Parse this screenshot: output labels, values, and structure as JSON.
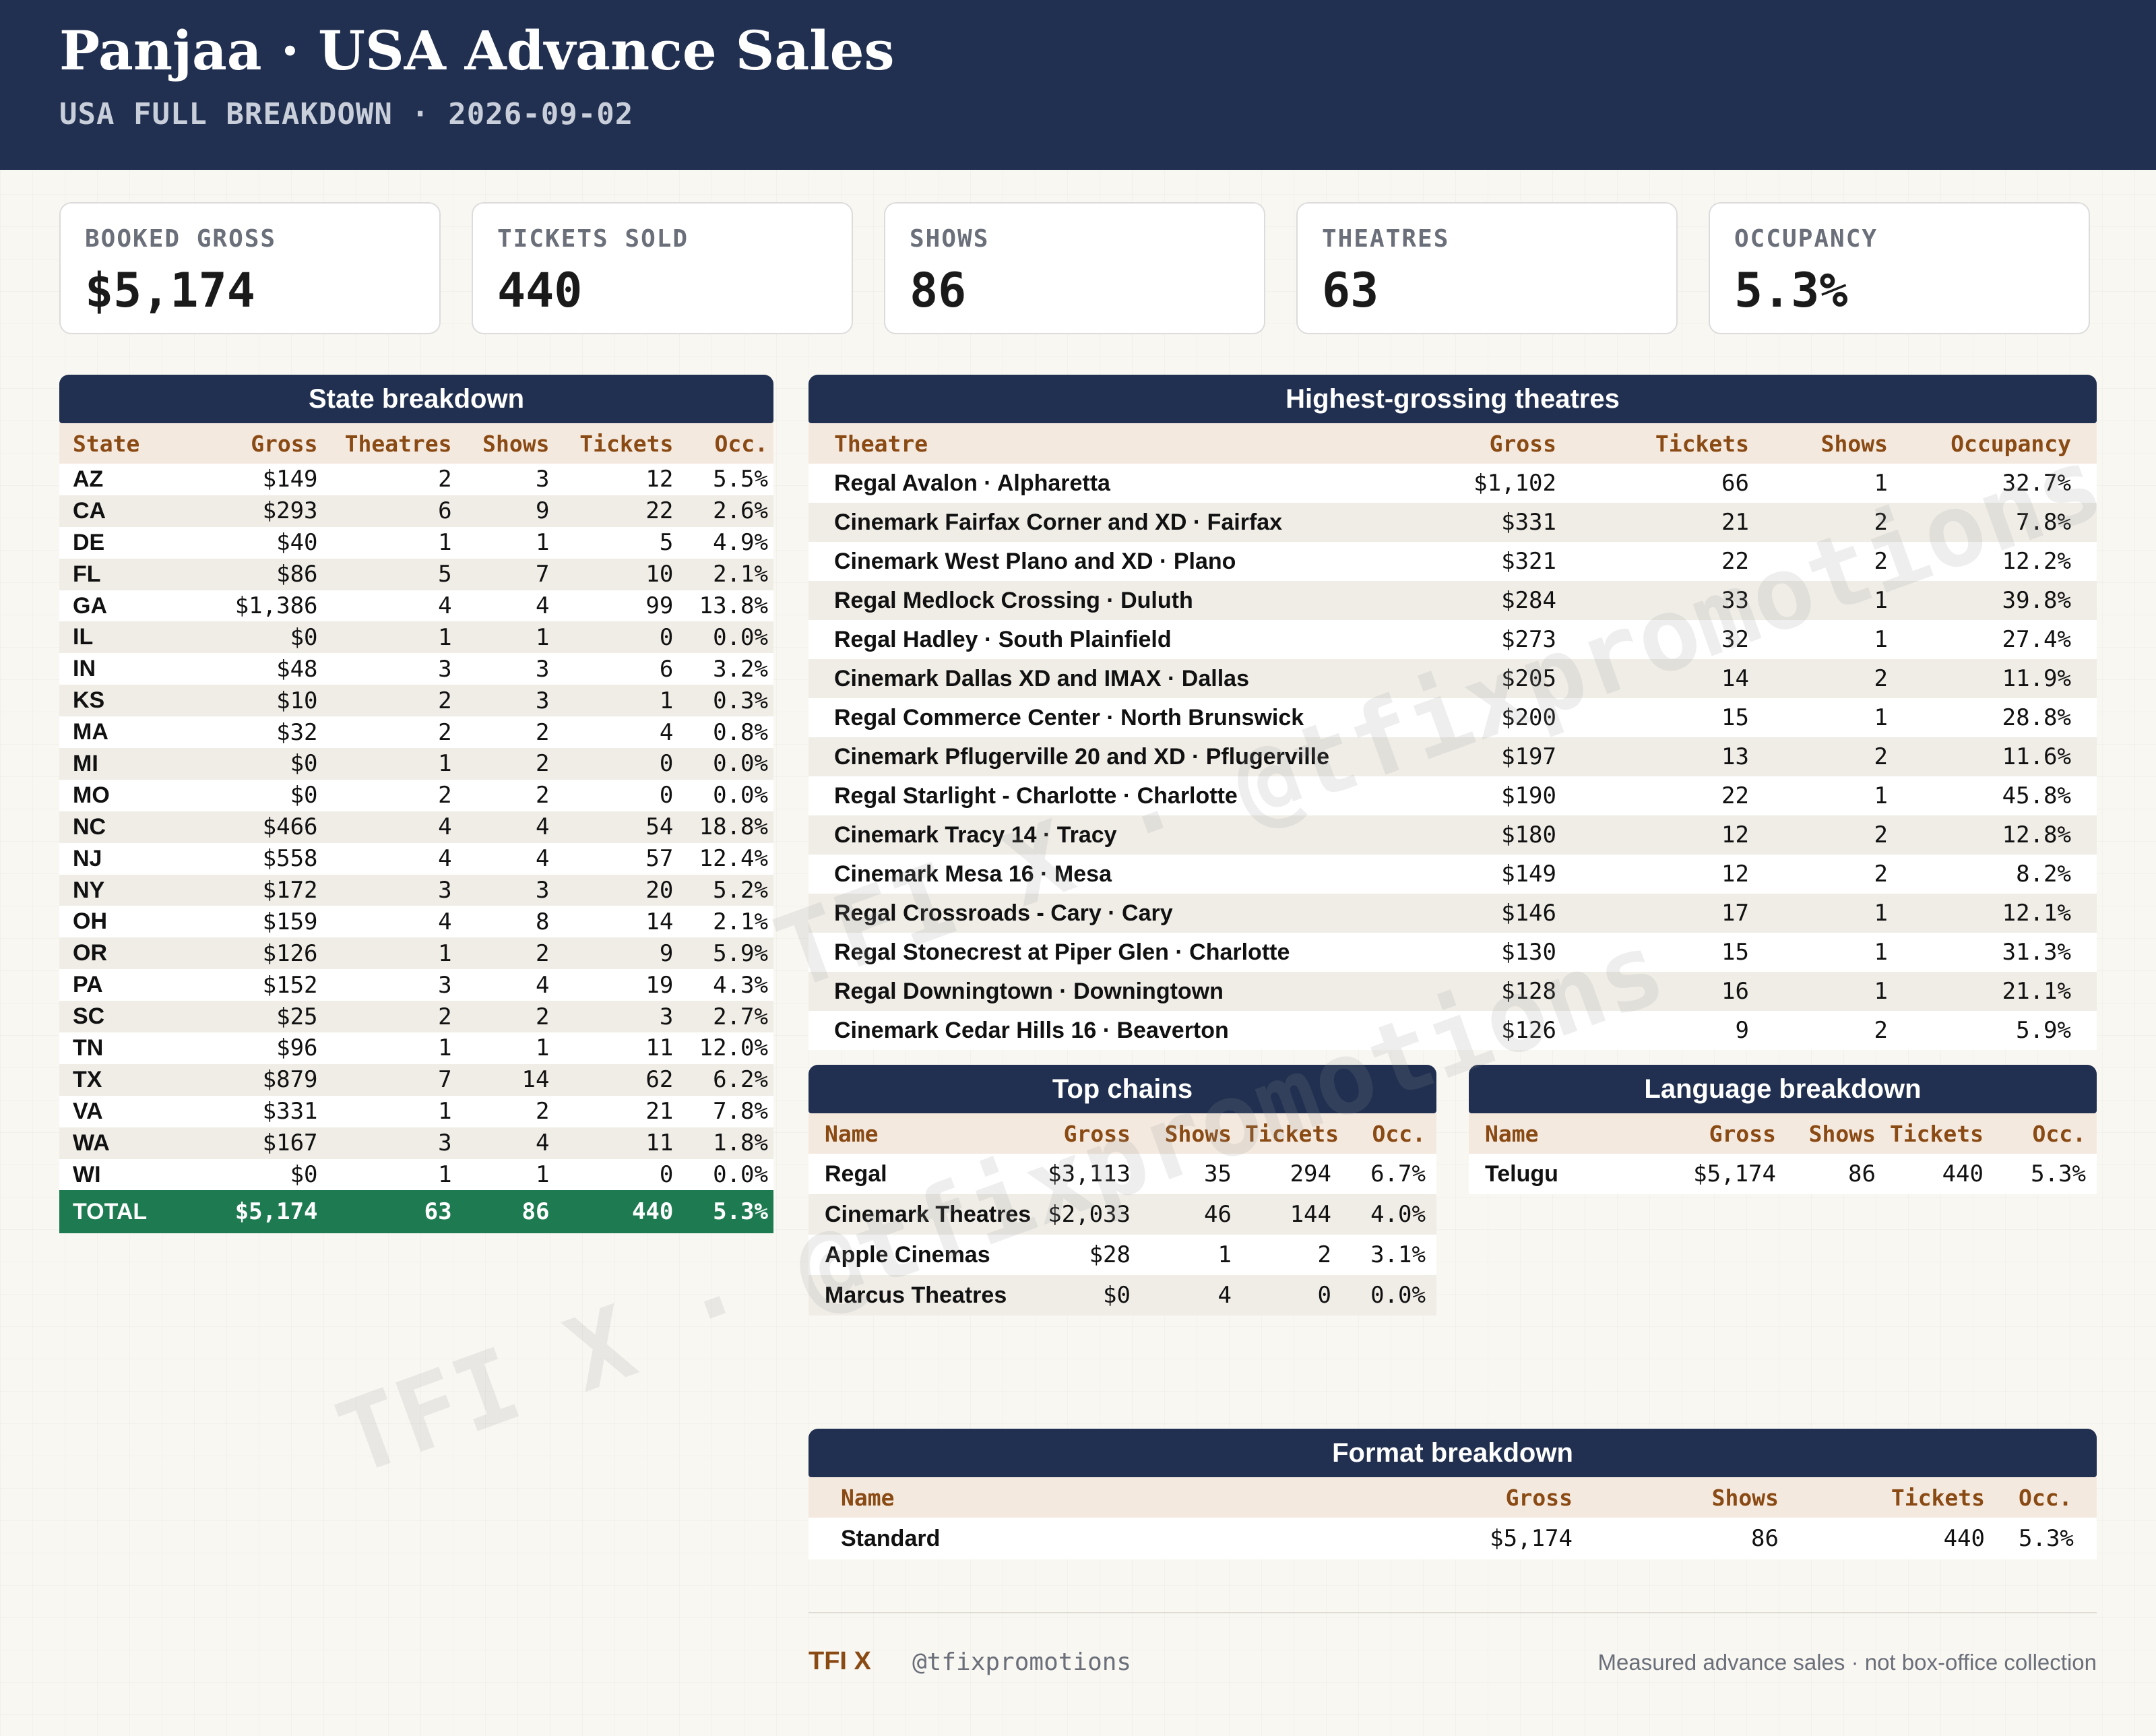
{
  "header": {
    "title": "Panjaa · USA Advance Sales",
    "subtitle": "USA FULL BREAKDOWN · 2026-09-02"
  },
  "kpis": [
    {
      "label": "BOOKED GROSS",
      "value": "$5,174"
    },
    {
      "label": "TICKETS SOLD",
      "value": "440"
    },
    {
      "label": "SHOWS",
      "value": "86"
    },
    {
      "label": "THEATRES",
      "value": "63"
    },
    {
      "label": "OCCUPANCY",
      "value": "5.3%"
    }
  ],
  "state_breakdown": {
    "title": "State breakdown",
    "columns": [
      "State",
      "Gross",
      "Theatres",
      "Shows",
      "Tickets",
      "Occ."
    ],
    "rows": [
      [
        "AZ",
        "$149",
        "2",
        "3",
        "12",
        "5.5%"
      ],
      [
        "CA",
        "$293",
        "6",
        "9",
        "22",
        "2.6%"
      ],
      [
        "DE",
        "$40",
        "1",
        "1",
        "5",
        "4.9%"
      ],
      [
        "FL",
        "$86",
        "5",
        "7",
        "10",
        "2.1%"
      ],
      [
        "GA",
        "$1,386",
        "4",
        "4",
        "99",
        "13.8%"
      ],
      [
        "IL",
        "$0",
        "1",
        "1",
        "0",
        "0.0%"
      ],
      [
        "IN",
        "$48",
        "3",
        "3",
        "6",
        "3.2%"
      ],
      [
        "KS",
        "$10",
        "2",
        "3",
        "1",
        "0.3%"
      ],
      [
        "MA",
        "$32",
        "2",
        "2",
        "4",
        "0.8%"
      ],
      [
        "MI",
        "$0",
        "1",
        "2",
        "0",
        "0.0%"
      ],
      [
        "MO",
        "$0",
        "2",
        "2",
        "0",
        "0.0%"
      ],
      [
        "NC",
        "$466",
        "4",
        "4",
        "54",
        "18.8%"
      ],
      [
        "NJ",
        "$558",
        "4",
        "4",
        "57",
        "12.4%"
      ],
      [
        "NY",
        "$172",
        "3",
        "3",
        "20",
        "5.2%"
      ],
      [
        "OH",
        "$159",
        "4",
        "8",
        "14",
        "2.1%"
      ],
      [
        "OR",
        "$126",
        "1",
        "2",
        "9",
        "5.9%"
      ],
      [
        "PA",
        "$152",
        "3",
        "4",
        "19",
        "4.3%"
      ],
      [
        "SC",
        "$25",
        "2",
        "2",
        "3",
        "2.7%"
      ],
      [
        "TN",
        "$96",
        "1",
        "1",
        "11",
        "12.0%"
      ],
      [
        "TX",
        "$879",
        "7",
        "14",
        "62",
        "6.2%"
      ],
      [
        "VA",
        "$331",
        "1",
        "2",
        "21",
        "7.8%"
      ],
      [
        "WA",
        "$167",
        "3",
        "4",
        "11",
        "1.8%"
      ],
      [
        "WI",
        "$0",
        "1",
        "1",
        "0",
        "0.0%"
      ]
    ],
    "total": [
      "TOTAL",
      "$5,174",
      "63",
      "86",
      "440",
      "5.3%"
    ]
  },
  "theatres": {
    "title": "Highest-grossing theatres",
    "columns": [
      "Theatre",
      "Gross",
      "Tickets",
      "Shows",
      "Occupancy"
    ],
    "rows": [
      [
        "Regal Avalon · Alpharetta",
        "$1,102",
        "66",
        "1",
        "32.7%"
      ],
      [
        "Cinemark Fairfax Corner and XD · Fairfax",
        "$331",
        "21",
        "2",
        "7.8%"
      ],
      [
        "Cinemark West Plano and XD · Plano",
        "$321",
        "22",
        "2",
        "12.2%"
      ],
      [
        "Regal Medlock Crossing · Duluth",
        "$284",
        "33",
        "1",
        "39.8%"
      ],
      [
        "Regal Hadley · South Plainfield",
        "$273",
        "32",
        "1",
        "27.4%"
      ],
      [
        "Cinemark Dallas XD and IMAX · Dallas",
        "$205",
        "14",
        "2",
        "11.9%"
      ],
      [
        "Regal Commerce Center · North Brunswick",
        "$200",
        "15",
        "1",
        "28.8%"
      ],
      [
        "Cinemark Pflugerville 20 and XD · Pflugerville",
        "$197",
        "13",
        "2",
        "11.6%"
      ],
      [
        "Regal Starlight - Charlotte · Charlotte",
        "$190",
        "22",
        "1",
        "45.8%"
      ],
      [
        "Cinemark Tracy 14 · Tracy",
        "$180",
        "12",
        "2",
        "12.8%"
      ],
      [
        "Cinemark Mesa 16 · Mesa",
        "$149",
        "12",
        "2",
        "8.2%"
      ],
      [
        "Regal Crossroads - Cary · Cary",
        "$146",
        "17",
        "1",
        "12.1%"
      ],
      [
        "Regal Stonecrest at Piper Glen · Charlotte",
        "$130",
        "15",
        "1",
        "31.3%"
      ],
      [
        "Regal Downingtown · Downingtown",
        "$128",
        "16",
        "1",
        "21.1%"
      ],
      [
        "Cinemark Cedar Hills 16 · Beaverton",
        "$126",
        "9",
        "2",
        "5.9%"
      ]
    ]
  },
  "chains": {
    "title": "Top chains",
    "columns": [
      "Name",
      "Gross",
      "Shows",
      "Tickets",
      "Occ."
    ],
    "rows": [
      [
        "Regal",
        "$3,113",
        "35",
        "294",
        "6.7%"
      ],
      [
        "Cinemark Theatres",
        "$2,033",
        "46",
        "144",
        "4.0%"
      ],
      [
        "Apple Cinemas",
        "$28",
        "1",
        "2",
        "3.1%"
      ],
      [
        "Marcus Theatres",
        "$0",
        "4",
        "0",
        "0.0%"
      ]
    ]
  },
  "languages": {
    "title": "Language breakdown",
    "columns": [
      "Name",
      "Gross",
      "Shows",
      "Tickets",
      "Occ."
    ],
    "rows": [
      [
        "Telugu",
        "$5,174",
        "86",
        "440",
        "5.3%"
      ]
    ]
  },
  "formats": {
    "title": "Format breakdown",
    "columns": [
      "Name",
      "Gross",
      "Shows",
      "Tickets",
      "Occ."
    ],
    "rows": [
      [
        "Standard",
        "$5,174",
        "86",
        "440",
        "5.3%"
      ]
    ]
  },
  "watermark": {
    "text_1": "TFI X · @tfixpromotions",
    "text_2": "TFI X · @tfixpromotions"
  },
  "footer": {
    "brand": "TFI X",
    "handle": "@tfixpromotions",
    "note": "Measured advance sales · not box-office collection"
  },
  "colors": {
    "header_bg": "#213050",
    "total_row": "#1e7b51",
    "column_header_text": "#8a4a14"
  }
}
